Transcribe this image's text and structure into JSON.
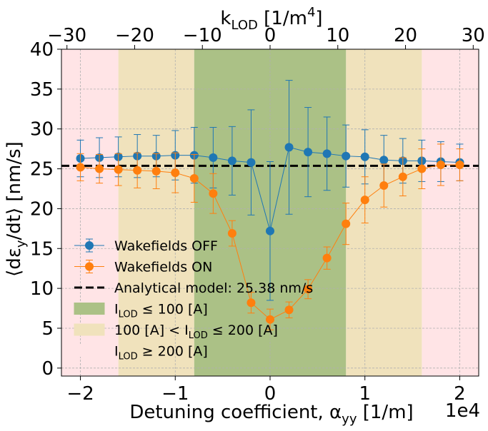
{
  "chart_data": {
    "type": "line",
    "x_axis": {
      "label_main": "Detuning coefficient, α",
      "label_sub": "yy",
      "label_tail": " [1/m]",
      "lim": [
        -2.2,
        2.2
      ],
      "ticks": [
        -2,
        -1,
        0,
        1,
        2
      ],
      "tick_labels": [
        "−2",
        "−1",
        "0",
        "1",
        "2"
      ],
      "offset_text": "1e4"
    },
    "top_axis": {
      "label_main": "k",
      "label_sub": "LOD",
      "label_tail": " [1/m",
      "label_sup": "4",
      "label_end": "]",
      "ticks": [
        -30,
        -20,
        -10,
        0,
        10,
        20,
        30
      ],
      "tick_labels": [
        "−30",
        "−20",
        "−10",
        "0",
        "10",
        "20",
        "30"
      ]
    },
    "y_axis": {
      "label_pre": "⟨dε",
      "label_sub": "y",
      "label_tail": "/dt⟩ [nm/s]",
      "lim": [
        -1,
        40
      ],
      "ticks": [
        0,
        5,
        10,
        15,
        20,
        25,
        30,
        35,
        40
      ],
      "tick_labels": [
        "0",
        "5",
        "10",
        "15",
        "20",
        "25",
        "30",
        "35",
        "40"
      ]
    },
    "grid": true,
    "regions": [
      {
        "x0": -2.2,
        "x1": -1.6,
        "color": "#ffe4e6",
        "band": "high"
      },
      {
        "x0": 1.6,
        "x1": 2.2,
        "color": "#ffe4e6",
        "band": "high"
      },
      {
        "x0": -1.6,
        "x1": -0.8,
        "color": "#f0e2bc",
        "band": "mid"
      },
      {
        "x0": 0.8,
        "x1": 1.6,
        "color": "#f0e2bc",
        "band": "mid"
      },
      {
        "x0": -0.8,
        "x1": 0.8,
        "color": "#abc186",
        "band": "low"
      }
    ],
    "reference_line": {
      "y": 25.38,
      "color": "#000000"
    },
    "x": [
      -2.0,
      -1.8,
      -1.6,
      -1.4,
      -1.2,
      -1.0,
      -0.8,
      -0.6,
      -0.4,
      -0.2,
      0.0,
      0.2,
      0.4,
      0.6,
      0.8,
      1.0,
      1.2,
      1.4,
      1.6,
      1.8,
      2.0
    ],
    "series": [
      {
        "name": "Wakefields OFF",
        "color": "#1f77b4",
        "values": [
          26.3,
          26.4,
          26.5,
          26.6,
          26.6,
          26.7,
          26.7,
          26.4,
          26.0,
          25.8,
          17.2,
          27.7,
          27.1,
          26.9,
          26.6,
          26.5,
          26.1,
          26.0,
          26.0,
          25.9,
          25.8
        ],
        "errors": [
          2.3,
          2.5,
          2.5,
          2.7,
          2.6,
          3.1,
          3.5,
          3.8,
          4.3,
          6.6,
          8.7,
          8.4,
          5.6,
          4.6,
          3.9,
          3.4,
          3.1,
          2.8,
          2.6,
          2.5,
          2.3
        ]
      },
      {
        "name": "Wakefields ON",
        "color": "#ff7f0e",
        "values": [
          25.2,
          25.0,
          24.9,
          24.8,
          24.7,
          24.5,
          23.8,
          21.9,
          16.9,
          8.2,
          6.1,
          7.3,
          9.9,
          13.8,
          18.1,
          21.1,
          22.9,
          24.0,
          25.0,
          25.5,
          25.5
        ],
        "errors": [
          1.7,
          1.8,
          2.0,
          2.2,
          2.2,
          2.5,
          3.0,
          2.5,
          1.6,
          1.3,
          1.3,
          1.0,
          1.2,
          1.4,
          2.6,
          2.9,
          2.7,
          2.4,
          2.5,
          2.6,
          2.0
        ]
      }
    ],
    "legend": {
      "position": "lower-left",
      "entries": [
        {
          "kind": "line",
          "series": 0,
          "label": "Wakefields OFF"
        },
        {
          "kind": "line",
          "series": 1,
          "label": "Wakefields ON"
        },
        {
          "kind": "dash",
          "label": "Analytical model: 25.38 nm/s"
        },
        {
          "kind": "patch",
          "band": "low",
          "label_pre": "I",
          "label_sub": "LOD",
          "label_tail": " ≤ 100 [A]"
        },
        {
          "kind": "patch",
          "band": "mid",
          "label_pre": "100 [A] < I",
          "label_sub": "LOD",
          "label_tail": " ≤ 200 [A]"
        },
        {
          "kind": "patch",
          "band": "high",
          "label_pre": "I",
          "label_sub": "LOD",
          "label_tail": " ≥ 200 [A]"
        }
      ]
    }
  }
}
